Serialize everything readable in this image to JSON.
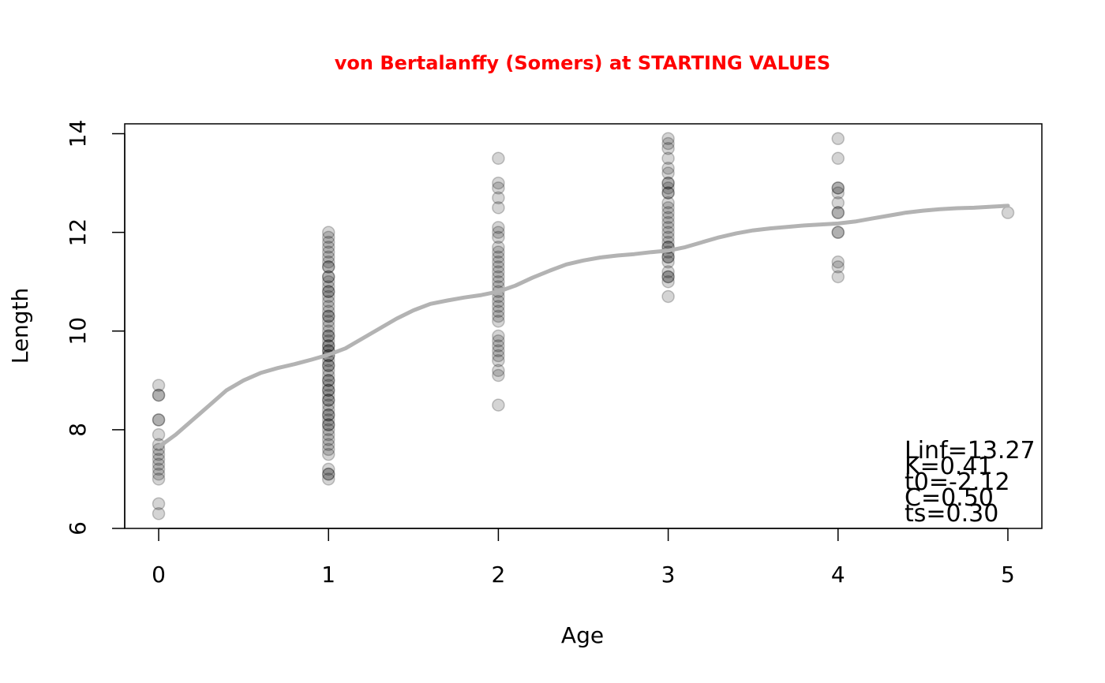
{
  "chart_data": {
    "type": "scatter",
    "title": "von Bertalanffy (Somers) at STARTING VALUES",
    "xlabel": "Age",
    "ylabel": "Length",
    "xlim": [
      -0.2,
      5.2
    ],
    "ylim": [
      6,
      14.2
    ],
    "xticks": [
      0,
      1,
      2,
      3,
      4,
      5
    ],
    "yticks": [
      6,
      8,
      10,
      12,
      14
    ],
    "grid": false,
    "colors": {
      "title": "#ff0000",
      "points": "#000000",
      "curve": "#b3b3b3"
    },
    "series": [
      {
        "type": "scatter",
        "points": [
          [
            0,
            8.9
          ],
          [
            0,
            8.7
          ],
          [
            0,
            8.7
          ],
          [
            0,
            8.2
          ],
          [
            0,
            8.2
          ],
          [
            0,
            7.9
          ],
          [
            0,
            7.7
          ],
          [
            0,
            7.6
          ],
          [
            0,
            7.5
          ],
          [
            0,
            7.4
          ],
          [
            0,
            7.3
          ],
          [
            0,
            7.2
          ],
          [
            0,
            7.1
          ],
          [
            0,
            7.0
          ],
          [
            0,
            6.5
          ],
          [
            0,
            6.3
          ],
          [
            1,
            12.0
          ],
          [
            1,
            11.9
          ],
          [
            1,
            11.8
          ],
          [
            1,
            11.7
          ],
          [
            1,
            11.6
          ],
          [
            1,
            11.5
          ],
          [
            1,
            11.4
          ],
          [
            1,
            11.3
          ],
          [
            1,
            11.3
          ],
          [
            1,
            11.1
          ],
          [
            1,
            11.1
          ],
          [
            1,
            11.0
          ],
          [
            1,
            10.9
          ],
          [
            1,
            10.8
          ],
          [
            1,
            10.8
          ],
          [
            1,
            10.7
          ],
          [
            1,
            10.6
          ],
          [
            1,
            10.5
          ],
          [
            1,
            10.4
          ],
          [
            1,
            10.3
          ],
          [
            1,
            10.3
          ],
          [
            1,
            10.2
          ],
          [
            1,
            10.1
          ],
          [
            1,
            10.0
          ],
          [
            1,
            9.9
          ],
          [
            1,
            9.9
          ],
          [
            1,
            9.8
          ],
          [
            1,
            9.7
          ],
          [
            1,
            9.7
          ],
          [
            1,
            9.6
          ],
          [
            1,
            9.6
          ],
          [
            1,
            9.5
          ],
          [
            1,
            9.5
          ],
          [
            1,
            9.4
          ],
          [
            1,
            9.3
          ],
          [
            1,
            9.3
          ],
          [
            1,
            9.2
          ],
          [
            1,
            9.1
          ],
          [
            1,
            9.0
          ],
          [
            1,
            9.0
          ],
          [
            1,
            8.9
          ],
          [
            1,
            8.8
          ],
          [
            1,
            8.8
          ],
          [
            1,
            8.7
          ],
          [
            1,
            8.6
          ],
          [
            1,
            8.6
          ],
          [
            1,
            8.5
          ],
          [
            1,
            8.4
          ],
          [
            1,
            8.3
          ],
          [
            1,
            8.3
          ],
          [
            1,
            8.2
          ],
          [
            1,
            8.1
          ],
          [
            1,
            8.1
          ],
          [
            1,
            8.0
          ],
          [
            1,
            7.9
          ],
          [
            1,
            7.8
          ],
          [
            1,
            7.7
          ],
          [
            1,
            7.6
          ],
          [
            1,
            7.5
          ],
          [
            1,
            7.2
          ],
          [
            1,
            7.1
          ],
          [
            1,
            7.1
          ],
          [
            1,
            7.0
          ],
          [
            2,
            13.5
          ],
          [
            2,
            13.0
          ],
          [
            2,
            12.9
          ],
          [
            2,
            12.7
          ],
          [
            2,
            12.5
          ],
          [
            2,
            12.1
          ],
          [
            2,
            12.0
          ],
          [
            2,
            11.9
          ],
          [
            2,
            11.7
          ],
          [
            2,
            11.6
          ],
          [
            2,
            11.5
          ],
          [
            2,
            11.4
          ],
          [
            2,
            11.3
          ],
          [
            2,
            11.2
          ],
          [
            2,
            11.1
          ],
          [
            2,
            11.0
          ],
          [
            2,
            10.9
          ],
          [
            2,
            10.8
          ],
          [
            2,
            10.7
          ],
          [
            2,
            10.6
          ],
          [
            2,
            10.5
          ],
          [
            2,
            10.4
          ],
          [
            2,
            10.3
          ],
          [
            2,
            10.2
          ],
          [
            2,
            9.9
          ],
          [
            2,
            9.8
          ],
          [
            2,
            9.7
          ],
          [
            2,
            9.6
          ],
          [
            2,
            9.5
          ],
          [
            2,
            9.4
          ],
          [
            2,
            9.2
          ],
          [
            2,
            9.1
          ],
          [
            2,
            8.5
          ],
          [
            3,
            13.9
          ],
          [
            3,
            13.8
          ],
          [
            3,
            13.7
          ],
          [
            3,
            13.5
          ],
          [
            3,
            13.3
          ],
          [
            3,
            13.2
          ],
          [
            3,
            13.0
          ],
          [
            3,
            13.0
          ],
          [
            3,
            12.9
          ],
          [
            3,
            12.8
          ],
          [
            3,
            12.8
          ],
          [
            3,
            12.6
          ],
          [
            3,
            12.5
          ],
          [
            3,
            12.4
          ],
          [
            3,
            12.3
          ],
          [
            3,
            12.2
          ],
          [
            3,
            12.1
          ],
          [
            3,
            12.0
          ],
          [
            3,
            11.9
          ],
          [
            3,
            11.8
          ],
          [
            3,
            11.7
          ],
          [
            3,
            11.7
          ],
          [
            3,
            11.6
          ],
          [
            3,
            11.5
          ],
          [
            3,
            11.5
          ],
          [
            3,
            11.4
          ],
          [
            3,
            11.2
          ],
          [
            3,
            11.1
          ],
          [
            3,
            11.1
          ],
          [
            3,
            11.0
          ],
          [
            3,
            10.7
          ],
          [
            4,
            13.9
          ],
          [
            4,
            13.5
          ],
          [
            4,
            12.9
          ],
          [
            4,
            12.9
          ],
          [
            4,
            12.8
          ],
          [
            4,
            12.6
          ],
          [
            4,
            12.4
          ],
          [
            4,
            12.4
          ],
          [
            4,
            12.0
          ],
          [
            4,
            12.0
          ],
          [
            4,
            11.4
          ],
          [
            4,
            11.3
          ],
          [
            4,
            11.1
          ],
          [
            5,
            12.4
          ]
        ]
      },
      {
        "type": "line",
        "points": [
          [
            0,
            7.65
          ],
          [
            0.1,
            7.9
          ],
          [
            0.2,
            8.2
          ],
          [
            0.3,
            8.5
          ],
          [
            0.4,
            8.8
          ],
          [
            0.5,
            9.0
          ],
          [
            0.6,
            9.15
          ],
          [
            0.7,
            9.25
          ],
          [
            0.8,
            9.33
          ],
          [
            0.9,
            9.42
          ],
          [
            1.0,
            9.52
          ],
          [
            1.1,
            9.65
          ],
          [
            1.2,
            9.85
          ],
          [
            1.3,
            10.05
          ],
          [
            1.4,
            10.25
          ],
          [
            1.5,
            10.42
          ],
          [
            1.6,
            10.55
          ],
          [
            1.7,
            10.62
          ],
          [
            1.8,
            10.68
          ],
          [
            1.9,
            10.73
          ],
          [
            2.0,
            10.8
          ],
          [
            2.1,
            10.92
          ],
          [
            2.2,
            11.08
          ],
          [
            2.3,
            11.22
          ],
          [
            2.4,
            11.35
          ],
          [
            2.5,
            11.43
          ],
          [
            2.6,
            11.49
          ],
          [
            2.7,
            11.53
          ],
          [
            2.8,
            11.56
          ],
          [
            2.9,
            11.6
          ],
          [
            3.0,
            11.63
          ],
          [
            3.1,
            11.7
          ],
          [
            3.2,
            11.8
          ],
          [
            3.3,
            11.9
          ],
          [
            3.4,
            11.98
          ],
          [
            3.5,
            12.04
          ],
          [
            3.6,
            12.08
          ],
          [
            3.7,
            12.11
          ],
          [
            3.8,
            12.14
          ],
          [
            3.9,
            12.16
          ],
          [
            4.0,
            12.18
          ],
          [
            4.1,
            12.22
          ],
          [
            4.2,
            12.28
          ],
          [
            4.3,
            12.34
          ],
          [
            4.4,
            12.4
          ],
          [
            4.5,
            12.44
          ],
          [
            4.6,
            12.47
          ],
          [
            4.7,
            12.49
          ],
          [
            4.8,
            12.5
          ],
          [
            4.9,
            12.52
          ],
          [
            5.0,
            12.54
          ]
        ]
      }
    ],
    "annotations": [
      "Linf=13.27",
      "K=0.41",
      "t0=-2.12",
      "C=0.50",
      "ts=0.30"
    ]
  }
}
